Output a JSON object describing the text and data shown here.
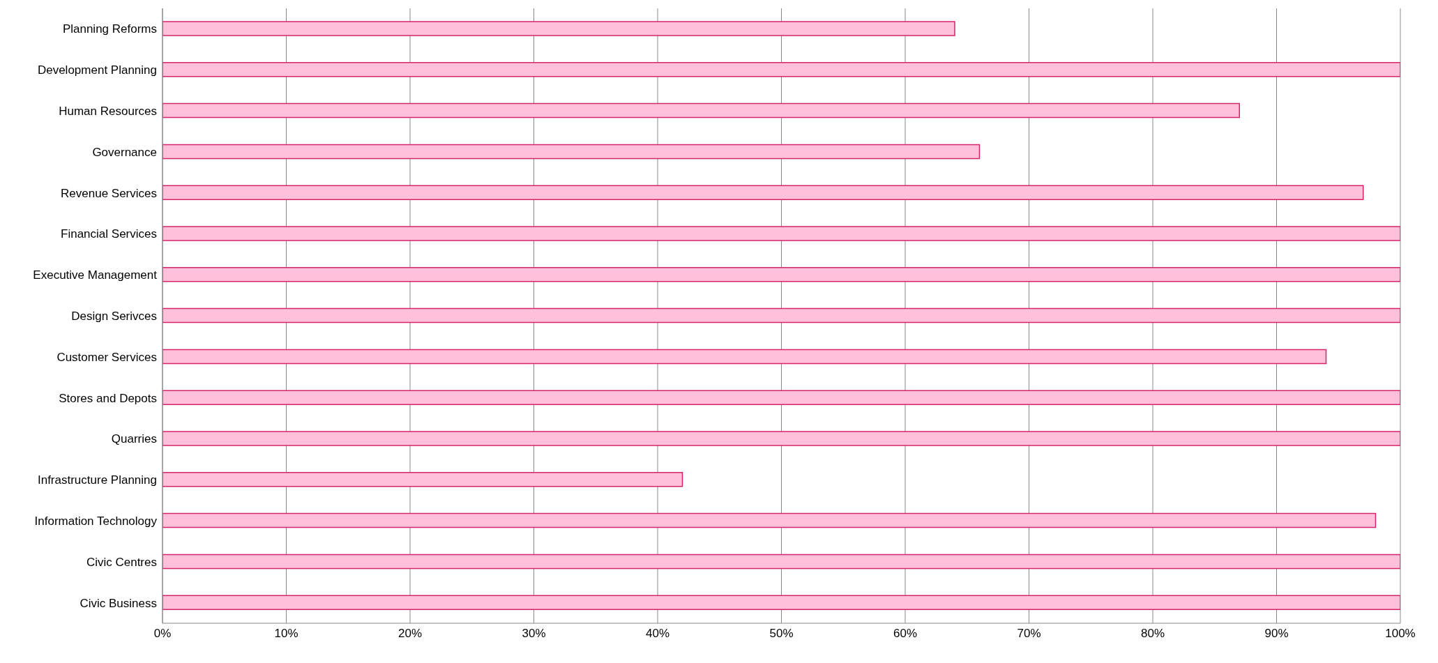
{
  "chart_data": {
    "type": "bar",
    "orientation": "horizontal",
    "categories": [
      "Planning Reforms",
      "Development Planning",
      "Human Resources",
      "Governance",
      "Revenue Services",
      "Financial Services",
      "Executive Management",
      "Design Serivces",
      "Customer Services",
      "Stores and Depots",
      "Quarries",
      "Infrastructure Planning",
      "Information Technology",
      "Civic Centres",
      "Civic Business"
    ],
    "values": [
      64,
      100,
      87,
      66,
      97,
      100,
      100,
      100,
      94,
      100,
      100,
      42,
      98,
      100,
      100
    ],
    "color": "#ffc0da",
    "xlim": [
      0,
      100
    ],
    "xticks": [
      {
        "value": 0,
        "label": "0%"
      },
      {
        "value": 10,
        "label": "10%"
      },
      {
        "value": 20,
        "label": "20%"
      },
      {
        "value": 30,
        "label": "30%"
      },
      {
        "value": 40,
        "label": "40%"
      },
      {
        "value": 50,
        "label": "50%"
      },
      {
        "value": 60,
        "label": "60%"
      },
      {
        "value": 70,
        "label": "70%"
      },
      {
        "value": 80,
        "label": "80%"
      },
      {
        "value": 90,
        "label": "90%"
      },
      {
        "value": 100,
        "label": "100%"
      }
    ],
    "grid": "x",
    "legend": false
  }
}
